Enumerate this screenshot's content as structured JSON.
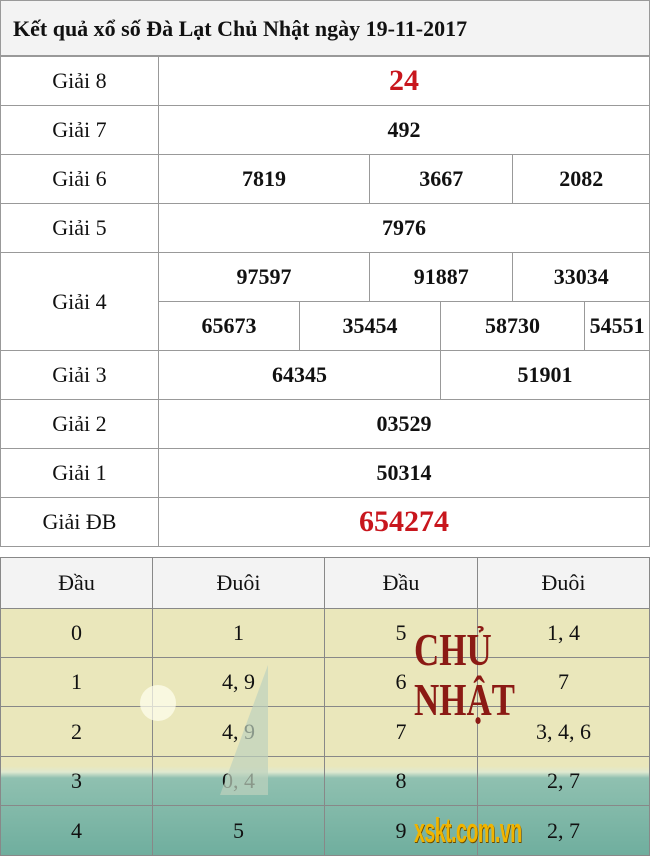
{
  "title": "Kết quả xổ số Đà Lạt Chủ Nhật ngày 19-11-2017",
  "prizes": {
    "g8": {
      "label": "Giải 8",
      "values": [
        "24"
      ]
    },
    "g7": {
      "label": "Giải 7",
      "values": [
        "492"
      ]
    },
    "g6": {
      "label": "Giải 6",
      "values": [
        "7819",
        "3667",
        "2082"
      ]
    },
    "g5": {
      "label": "Giải 5",
      "values": [
        "7976"
      ]
    },
    "g4": {
      "label": "Giải 4",
      "values": [
        "97597",
        "91887",
        "33034",
        "65673",
        "35454",
        "58730",
        "54551"
      ]
    },
    "g3": {
      "label": "Giải 3",
      "values": [
        "64345",
        "51901"
      ]
    },
    "g2": {
      "label": "Giải 2",
      "values": [
        "03529"
      ]
    },
    "g1": {
      "label": "Giải 1",
      "values": [
        "50314"
      ]
    },
    "db": {
      "label": "Giải ĐB",
      "values": [
        "654274"
      ]
    }
  },
  "loto": {
    "headers": [
      "Đầu",
      "Đuôi",
      "Đầu",
      "Đuôi"
    ],
    "rows": [
      [
        "0",
        "1",
        "5",
        "1, 4"
      ],
      [
        "1",
        "4, 9",
        "6",
        "7"
      ],
      [
        "2",
        "4, 9",
        "7",
        "3, 4, 6"
      ],
      [
        "3",
        "0, 4",
        "8",
        "2, 7"
      ],
      [
        "4",
        "5",
        "9",
        "2, 7"
      ]
    ]
  },
  "watermark": "CHỦ NHẬT",
  "logo": "xskt.com.vn",
  "colors": {
    "special": "#c8161d",
    "watermark": "#8b1a14",
    "logo": "#f0b400"
  }
}
